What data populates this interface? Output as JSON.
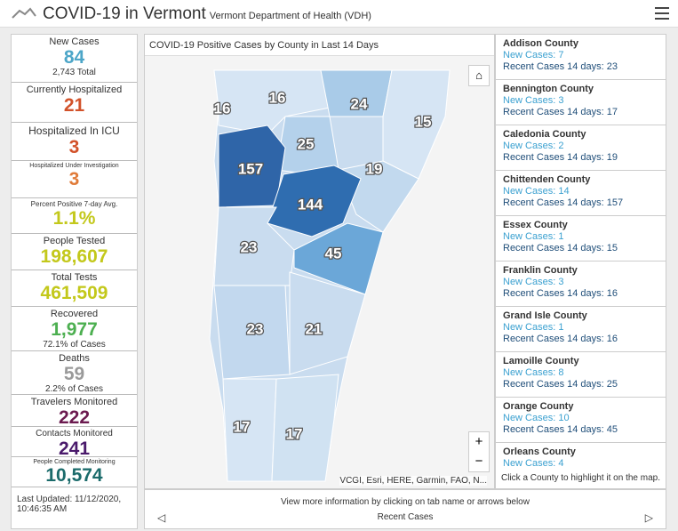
{
  "header": {
    "title": "COVID-19 in Vermont",
    "subtitle": "Vermont Department of Health (VDH)"
  },
  "stats": [
    {
      "label": "New Cases",
      "value": "84",
      "sub": "2,743 Total"
    },
    {
      "label": "Currently Hospitalized",
      "value": "21"
    },
    {
      "label": "Hospitalized In ICU",
      "value": "3"
    },
    {
      "label": "Hospitalized Under Investigation",
      "value": "3"
    },
    {
      "label": "Percent Positive 7-day Avg.",
      "value": "1.1%"
    },
    {
      "label": "People Tested",
      "value": "198,607"
    },
    {
      "label": "Total Tests",
      "value": "461,509"
    },
    {
      "label": "Recovered",
      "value": "1,977",
      "sub": "72.1% of Cases"
    },
    {
      "label": "Deaths",
      "value": "59",
      "sub": "2.2% of Cases"
    },
    {
      "label": "Travelers Monitored",
      "value": "222"
    },
    {
      "label": "Contacts Monitored",
      "value": "241"
    },
    {
      "label": "People Completed Monitoring",
      "value": "10,574"
    }
  ],
  "last_updated": "Last Updated: 11/12/2020, 10:46:35 AM",
  "map": {
    "title": "COVID-19 Positive Cases by County in Last 14 Days",
    "county_labels": [
      "16",
      "16",
      "24",
      "15",
      "25",
      "157",
      "19",
      "144",
      "23",
      "45",
      "23",
      "21",
      "17",
      "17"
    ],
    "attribution": "VCGI, Esri, HERE, Garmin, FAO, N..."
  },
  "county_list": {
    "items": [
      {
        "name": "Addison County",
        "new_cases": "New Cases: 7",
        "recent": "Recent Cases 14 days: 23"
      },
      {
        "name": "Bennington County",
        "new_cases": "New Cases: 3",
        "recent": "Recent Cases 14 days: 17"
      },
      {
        "name": "Caledonia County",
        "new_cases": "New Cases: 2",
        "recent": "Recent Cases 14 days: 19"
      },
      {
        "name": "Chittenden County",
        "new_cases": "New Cases: 14",
        "recent": "Recent Cases 14 days: 157"
      },
      {
        "name": "Essex County",
        "new_cases": "New Cases: 1",
        "recent": "Recent Cases 14 days: 15"
      },
      {
        "name": "Franklin County",
        "new_cases": "New Cases: 3",
        "recent": "Recent Cases 14 days: 16"
      },
      {
        "name": "Grand Isle County",
        "new_cases": "New Cases: 1",
        "recent": "Recent Cases 14 days: 16"
      },
      {
        "name": "Lamoille County",
        "new_cases": "New Cases: 8",
        "recent": "Recent Cases 14 days: 25"
      },
      {
        "name": "Orange County",
        "new_cases": "New Cases: 10",
        "recent": "Recent Cases 14 days: 45"
      },
      {
        "name": "Orleans County",
        "new_cases": "New Cases: 4"
      }
    ],
    "footer": "Click a County to highlight it on the map."
  },
  "footer": {
    "hint": "View more information by clicking on tab name or arrows below",
    "tab": "Recent Cases"
  }
}
